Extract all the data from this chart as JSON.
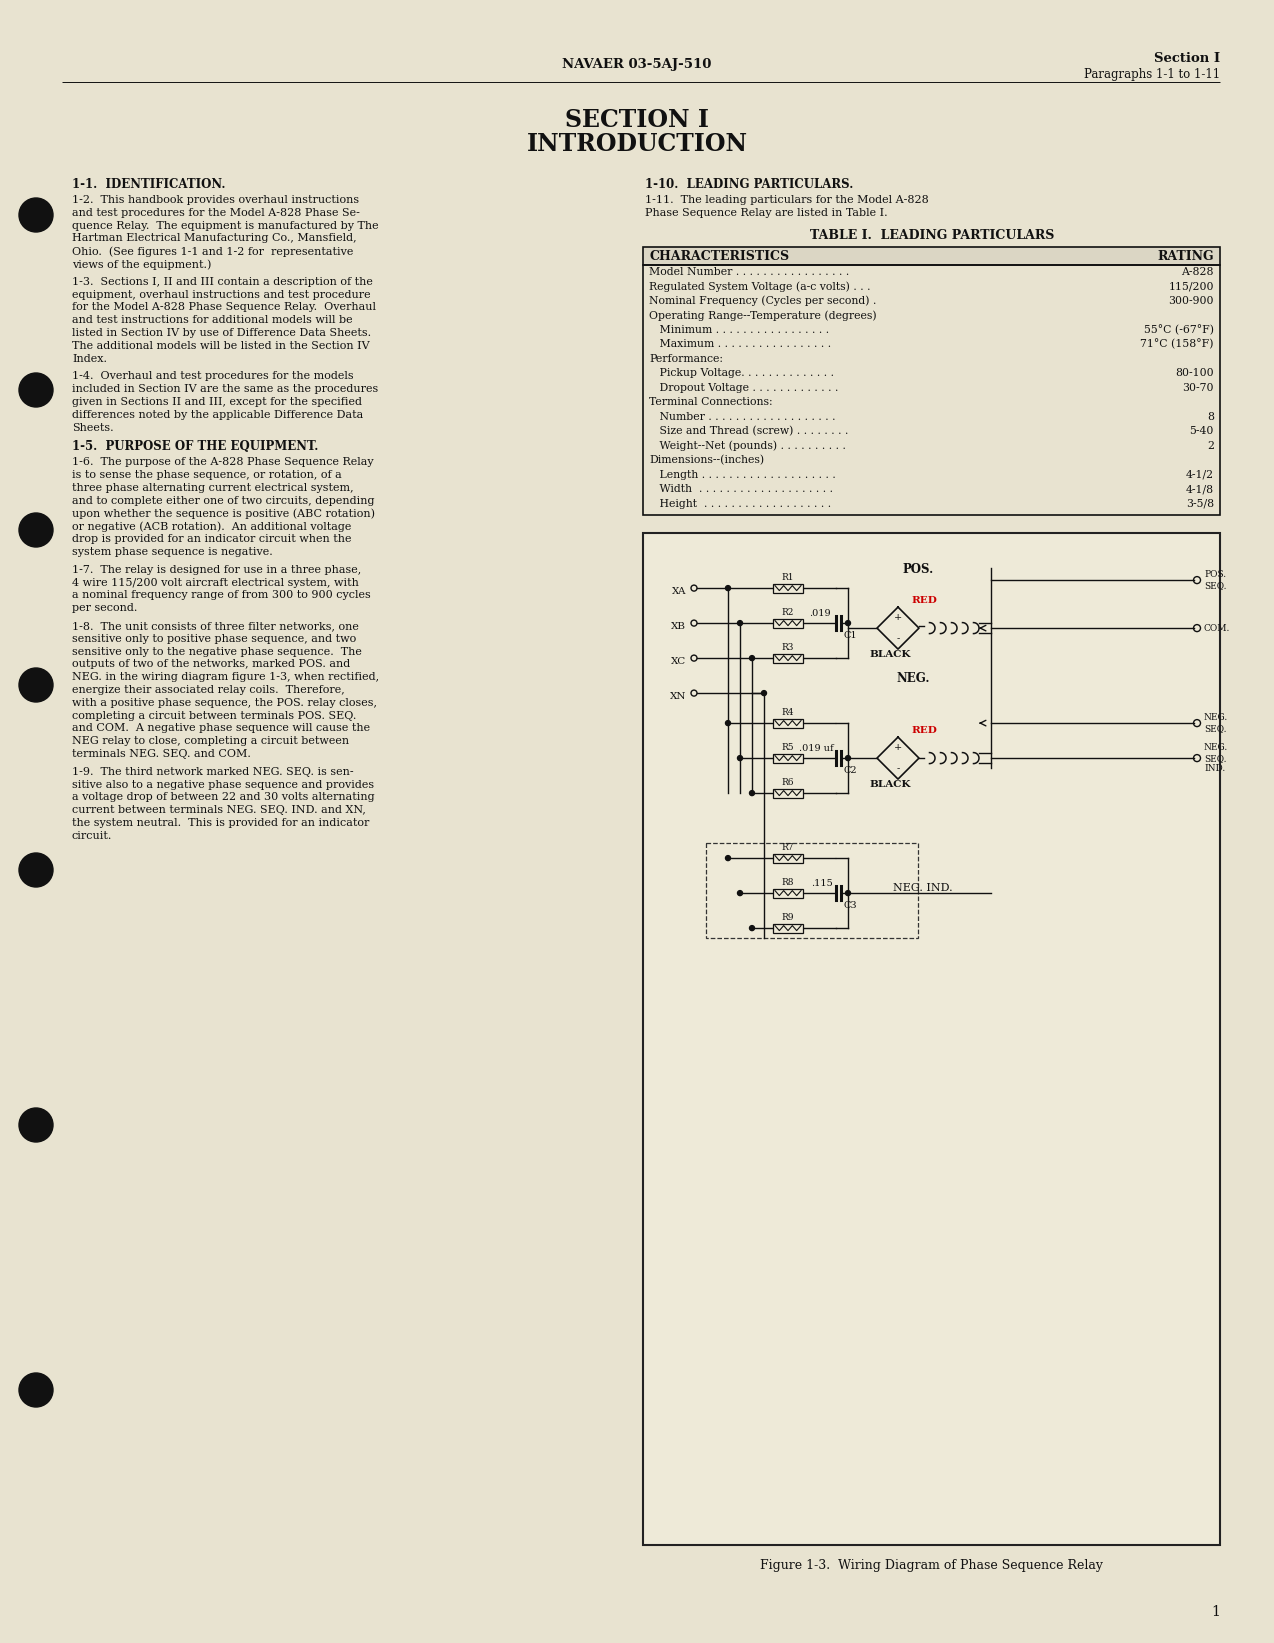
{
  "page_color": "#e8e3d0",
  "text_color": "#111111",
  "header_center": "NAVAER 03-5AJ-510",
  "header_right_line1": "Section I",
  "header_right_line2": "Paragraphs 1-1 to 1-11",
  "section_title_line1": "SECTION I",
  "section_title_line2": "INTRODUCTION",
  "page_number": "1"
}
